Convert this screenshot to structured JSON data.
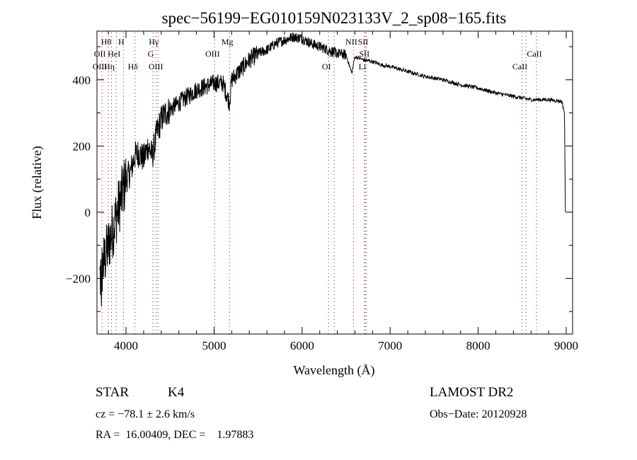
{
  "chart_data": {
    "type": "line",
    "title": "spec−56199−EG010159N023133V_2_sp08−165.fits",
    "xlabel": "Wavelength (Å)",
    "ylabel": "Flux (relative)",
    "xlim": [
      3670,
      9072
    ],
    "ylim": [
      -368,
      547
    ],
    "xticks": [
      4000,
      5000,
      6000,
      7000,
      8000,
      9000
    ],
    "xtick_labels": [
      "4000",
      "5000",
      "6000",
      "7000",
      "8000",
      "9000"
    ],
    "yticks": [
      400,
      200,
      0,
      -200
    ],
    "ytick_labels": [
      "400",
      "200",
      "0",
      "−200"
    ],
    "grid": false,
    "series": [
      {
        "name": "spectrum",
        "x": [
          3700,
          3750,
          3800,
          3850,
          3900,
          3950,
          4000,
          4050,
          4100,
          4150,
          4200,
          4250,
          4300,
          4350,
          4400,
          4450,
          4500,
          4600,
          4700,
          4800,
          4900,
          5000,
          5100,
          5175,
          5200,
          5300,
          5400,
          5500,
          5600,
          5700,
          5800,
          5900,
          6000,
          6100,
          6200,
          6300,
          6400,
          6500,
          6563,
          6600,
          6700,
          6800,
          6900,
          7000,
          7200,
          7400,
          7600,
          7800,
          8000,
          8200,
          8400,
          8500,
          8600,
          8800,
          8950,
          8980,
          8990
        ],
        "y": [
          -200,
          -150,
          -100,
          -50,
          0,
          50,
          100,
          120,
          170,
          180,
          160,
          200,
          170,
          240,
          280,
          300,
          310,
          330,
          350,
          370,
          380,
          390,
          390,
          330,
          400,
          430,
          460,
          480,
          490,
          510,
          520,
          530,
          525,
          510,
          500,
          490,
          480,
          475,
          420,
          470,
          460,
          455,
          445,
          440,
          425,
          410,
          400,
          385,
          375,
          360,
          350,
          345,
          340,
          340,
          335,
          300,
          0
        ]
      }
    ],
    "line_markers": [
      {
        "label": "Hθ",
        "wavelength": 3798,
        "tier": 1
      },
      {
        "label": "H",
        "wavelength": 3970,
        "tier": 1
      },
      {
        "label": "Hγ",
        "wavelength": 4340,
        "tier": 1
      },
      {
        "label": "Mg",
        "wavelength": 5175,
        "tier": 1
      },
      {
        "label": "NII",
        "wavelength": 6583,
        "tier": 1
      },
      {
        "label": "SII",
        "wavelength": 6716,
        "tier": 1
      },
      {
        "label": "OII",
        "wavelength": 3727,
        "tier": 2
      },
      {
        "label": "HeI",
        "wavelength": 3889,
        "tier": 2
      },
      {
        "label": "G",
        "wavelength": 4305,
        "tier": 2
      },
      {
        "label": "OIII",
        "wavelength": 5007,
        "tier": 2
      },
      {
        "label": "OI",
        "wavelength": 6364,
        "tier": 2
      },
      {
        "label": "SII",
        "wavelength": 6731,
        "tier": 2
      },
      {
        "label": "CaII",
        "wavelength": 8662,
        "tier": 2
      },
      {
        "label": "OIII",
        "wavelength": 3727,
        "tier": 3
      },
      {
        "label": "Hη",
        "wavelength": 3835,
        "tier": 3
      },
      {
        "label": "Hδ",
        "wavelength": 4102,
        "tier": 3
      },
      {
        "label": "OIII",
        "wavelength": 4363,
        "tier": 3
      },
      {
        "label": "OI",
        "wavelength": 6300,
        "tier": 3
      },
      {
        "label": "Li",
        "wavelength": 6708,
        "tier": 3
      },
      {
        "label": "CaII",
        "wavelength": 8498,
        "tier": 3
      },
      {
        "label": "",
        "wavelength": 8542,
        "tier": 0
      }
    ]
  },
  "info": {
    "class": "STAR",
    "subclass": "K4",
    "cz": "cz = −78.1 ± 2.6 km/s",
    "coords": "RA =  16.00409, DEC =    1.97883",
    "survey": "LAMOST DR2",
    "obs_date": "Obs−Date: 20120928"
  },
  "colors": {
    "axis": "#000000",
    "marker": "#8b1a1a"
  }
}
